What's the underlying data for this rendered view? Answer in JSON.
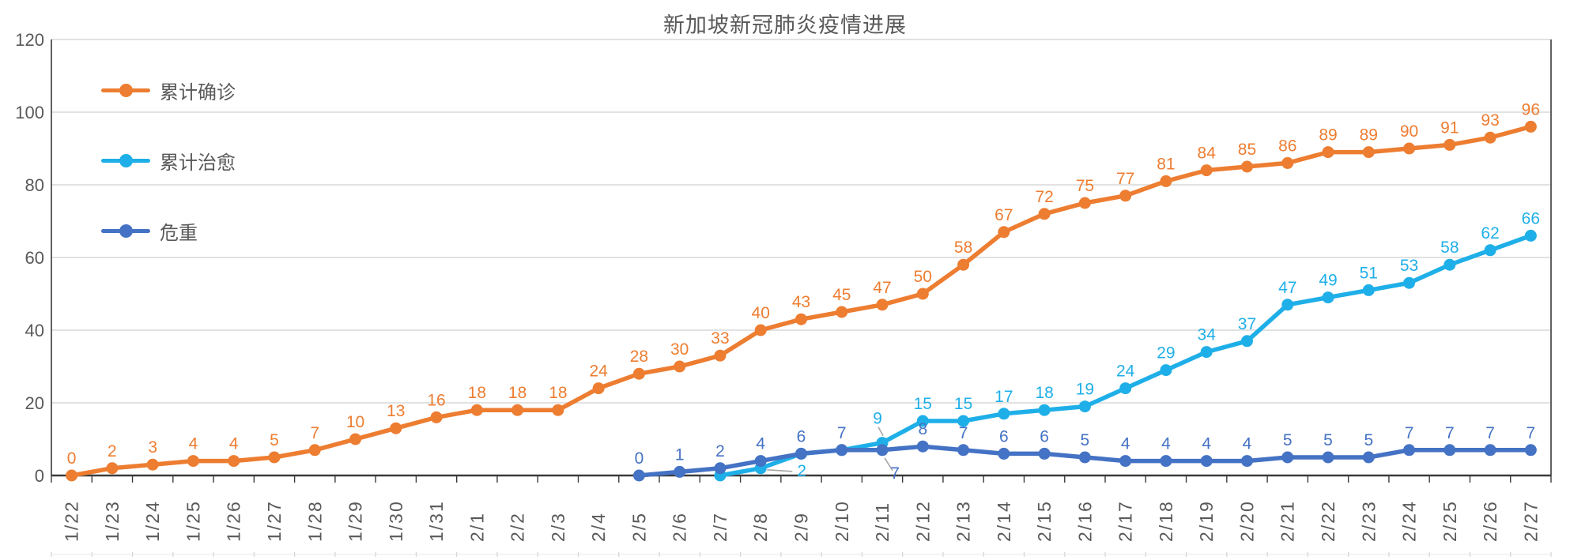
{
  "title": "新加坡新冠肺炎疫情进展",
  "chart_data": {
    "type": "line",
    "title": "新加坡新冠肺炎疫情进展",
    "categories": [
      "1/22",
      "1/23",
      "1/24",
      "1/25",
      "1/26",
      "1/27",
      "1/28",
      "1/29",
      "1/30",
      "1/31",
      "2/1",
      "2/2",
      "2/3",
      "2/4",
      "2/5",
      "2/6",
      "2/7",
      "2/8",
      "2/9",
      "2/10",
      "2/11",
      "2/12",
      "2/13",
      "2/14",
      "2/15",
      "2/16",
      "2/17",
      "2/18",
      "2/19",
      "2/20",
      "2/21",
      "2/22",
      "2/23",
      "2/24",
      "2/25",
      "2/26",
      "2/27"
    ],
    "series": [
      {
        "name": "累计确诊",
        "color": "#ED7D31",
        "values": [
          0,
          2,
          3,
          4,
          4,
          5,
          7,
          10,
          13,
          16,
          18,
          18,
          18,
          24,
          28,
          30,
          33,
          40,
          43,
          45,
          47,
          50,
          58,
          67,
          72,
          75,
          77,
          81,
          84,
          85,
          86,
          89,
          89,
          90,
          91,
          93,
          96
        ]
      },
      {
        "name": "累计治愈",
        "color": "#1FAFE8",
        "values": [
          null,
          null,
          null,
          null,
          null,
          null,
          null,
          null,
          null,
          null,
          null,
          null,
          null,
          null,
          null,
          null,
          0,
          2,
          6,
          7,
          9,
          15,
          15,
          17,
          18,
          19,
          24,
          29,
          34,
          37,
          47,
          49,
          51,
          53,
          58,
          62,
          66
        ]
      },
      {
        "name": "危重",
        "color": "#4472C4",
        "values": [
          null,
          null,
          null,
          null,
          null,
          null,
          null,
          null,
          null,
          null,
          null,
          null,
          null,
          null,
          0,
          1,
          2,
          4,
          6,
          7,
          7,
          8,
          7,
          6,
          6,
          5,
          4,
          4,
          4,
          4,
          5,
          5,
          5,
          7,
          7,
          7,
          7
        ]
      }
    ],
    "ylim": [
      0,
      120
    ],
    "y_ticks": [
      0,
      20,
      40,
      60,
      80,
      100,
      120
    ],
    "grid": "horizontal",
    "legend_position": "inside-top-left",
    "x_label_rotation": -90
  },
  "colors": {
    "axis": "#3a3a3a",
    "grid": "#D9D9D9",
    "text": "#595959",
    "leader": "#A6A6A6",
    "background": "#FFFFFF"
  }
}
